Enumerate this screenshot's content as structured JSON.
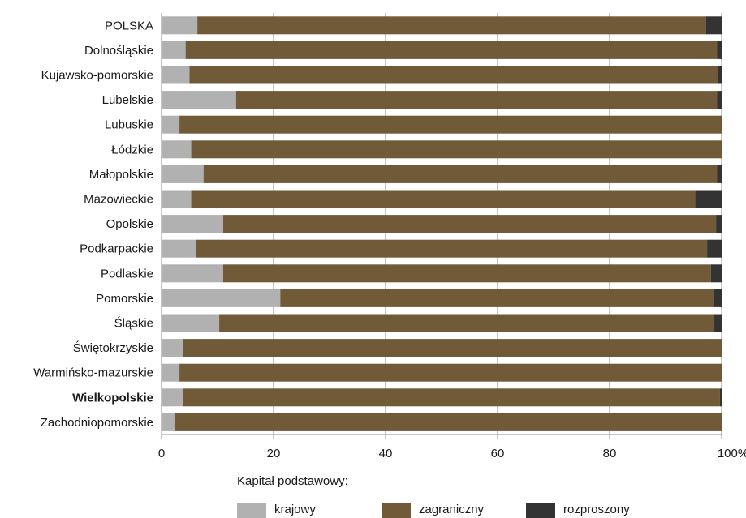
{
  "chart_data": {
    "type": "bar",
    "orientation": "horizontal",
    "stacked": true,
    "percent_stacked": true,
    "categories": [
      "POLSKA",
      "Dolnośląskie",
      "Kujawsko-pomorskie",
      "Lubelskie",
      "Lubuskie",
      "Łódzkie",
      "Małopolskie",
      "Mazowieckie",
      "Opolskie",
      "Podkarpackie",
      "Podlaskie",
      "Pomorskie",
      "Śląskie",
      "Świętokrzyskie",
      "Warmińsko-mazurskie",
      "Wielkopolskie",
      "Zachodniopomorskie"
    ],
    "highlighted_category": "Wielkopolskie",
    "series": [
      {
        "name": "krajowy",
        "color": "#b1b1b1",
        "values": [
          6.4,
          4.3,
          5.0,
          13.3,
          3.2,
          5.3,
          7.5,
          5.3,
          11.0,
          6.2,
          11.0,
          21.2,
          10.3,
          3.9,
          3.2,
          3.9,
          2.3
        ]
      },
      {
        "name": "zagraniczny",
        "color": "#705a38",
        "values": [
          90.8,
          94.9,
          94.3,
          85.9,
          96.8,
          94.7,
          91.7,
          90.0,
          88.0,
          91.2,
          87.1,
          77.3,
          88.4,
          96.1,
          96.8,
          95.8,
          97.7
        ]
      },
      {
        "name": "rozproszony",
        "color": "#333333",
        "values": [
          2.8,
          0.8,
          0.7,
          0.8,
          0.0,
          0.0,
          0.8,
          4.7,
          1.0,
          2.6,
          1.9,
          1.5,
          1.3,
          0.0,
          0.0,
          0.3,
          0.0
        ]
      }
    ],
    "xlim": [
      0,
      100
    ],
    "xticks": [
      "0",
      "20",
      "40",
      "60",
      "80",
      "100%"
    ],
    "xlabel": "",
    "ylabel": "",
    "grid": "vertical",
    "legend_title": "Kapitał podstawowy:",
    "legend_position": "bottom"
  }
}
